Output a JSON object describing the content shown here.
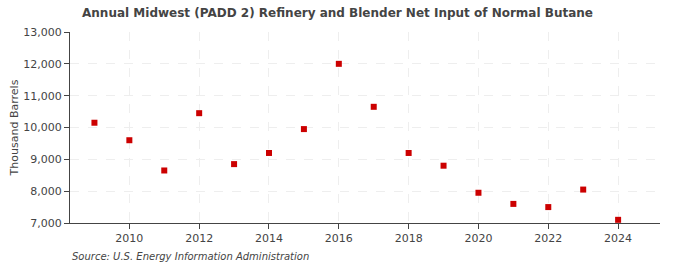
{
  "chart_data": {
    "type": "scatter",
    "title": "Annual Midwest (PADD 2) Refinery and Blender Net Input of Normal Butane",
    "ylabel": "Thousand Barrels",
    "annotation": "Source: U.S. Energy Information Administration",
    "x": [
      2009,
      2010,
      2011,
      2012,
      2013,
      2014,
      2015,
      2016,
      2017,
      2018,
      2019,
      2020,
      2021,
      2022,
      2023,
      2024
    ],
    "values": [
      10150,
      9600,
      8650,
      10450,
      8850,
      9200,
      9950,
      12000,
      10650,
      9200,
      8800,
      7950,
      7600,
      7500,
      8050,
      7100
    ],
    "color": "#cc0000",
    "marker": "square",
    "xlim": [
      2008.3,
      2025.2
    ],
    "xticks": [
      2010,
      2012,
      2014,
      2016,
      2018,
      2020,
      2022,
      2024
    ],
    "ylim": [
      7000,
      13000
    ],
    "yticks": [
      {
        "value": 7000,
        "label": "7,000"
      },
      {
        "value": 8000,
        "label": "8,000"
      },
      {
        "value": 9000,
        "label": "9,000"
      },
      {
        "value": 10000,
        "label": "10,000"
      },
      {
        "value": 11000,
        "label": "11,000"
      },
      {
        "value": 12000,
        "label": "12,000"
      },
      {
        "value": 13000,
        "label": "13,000"
      }
    ],
    "grid": true
  }
}
